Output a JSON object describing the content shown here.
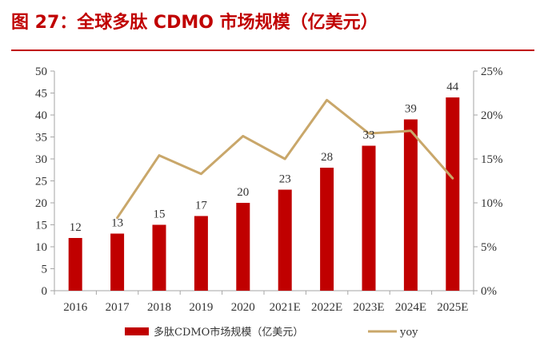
{
  "figure": {
    "title": "图 27：全球多肽 CDMO 市场规模（亿美元）"
  },
  "colors": {
    "accent": "#c00000",
    "bar": "#c00000",
    "line": "#c9a76a",
    "axis": "#a6a6a6"
  },
  "chart_data": {
    "type": "bar",
    "title": "",
    "categories": [
      "2016",
      "2017",
      "2018",
      "2019",
      "2020",
      "2021E",
      "2022E",
      "2023E",
      "2024E",
      "2025E"
    ],
    "series": [
      {
        "name": "多肽CDMO市场规模（亿美元）",
        "type": "bar",
        "axis": "left",
        "values": [
          12,
          13,
          15,
          17,
          20,
          23,
          28,
          33,
          39,
          44
        ],
        "data_labels": [
          "12",
          "13",
          "15",
          "17",
          "20",
          "23",
          "28",
          "33",
          "39",
          "44"
        ]
      },
      {
        "name": "yoy",
        "type": "line",
        "axis": "right",
        "values": [
          null,
          8.3,
          15.4,
          13.3,
          17.6,
          15.0,
          21.7,
          17.9,
          18.2,
          12.8
        ]
      }
    ],
    "y_left": {
      "lim": [
        0,
        50
      ],
      "ticks": [
        "0",
        "5",
        "10",
        "15",
        "20",
        "25",
        "30",
        "35",
        "40",
        "45",
        "50"
      ]
    },
    "y_right": {
      "lim": [
        0,
        25
      ],
      "unit": "%",
      "ticks": [
        "0%",
        "5%",
        "10%",
        "15%",
        "20%",
        "25%"
      ]
    },
    "grid": false,
    "legend_position": "bottom"
  }
}
